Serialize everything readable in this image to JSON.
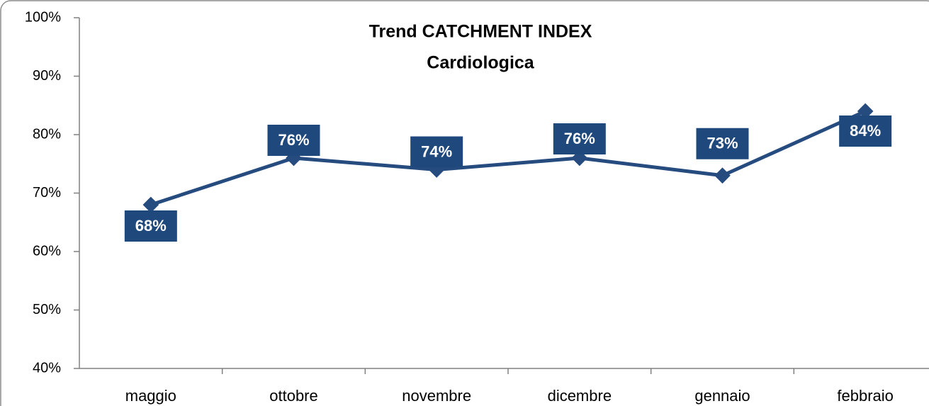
{
  "chart_data": {
    "type": "line",
    "title": "Trend CATCHMENT INDEX",
    "subtitle": "Cardiologica",
    "categories": [
      "maggio",
      "ottobre",
      "novembre",
      "dicembre",
      "gennaio",
      "febbraio"
    ],
    "series": [
      {
        "name": "Catchment index",
        "color": "#264b7e",
        "values": [
          68,
          76,
          74,
          76,
          73,
          84
        ],
        "value_labels": [
          "68%",
          "76%",
          "74%",
          "76%",
          "73%",
          "84%"
        ]
      }
    ],
    "ylim": [
      40,
      100
    ],
    "yticks": [
      {
        "value": 40,
        "label": "40%"
      },
      {
        "value": 50,
        "label": "50%"
      },
      {
        "value": 60,
        "label": "60%"
      },
      {
        "value": 70,
        "label": "70%"
      },
      {
        "value": 80,
        "label": "80%"
      },
      {
        "value": 90,
        "label": "90%"
      },
      {
        "value": 100,
        "label": "100%"
      }
    ],
    "grid": false
  }
}
